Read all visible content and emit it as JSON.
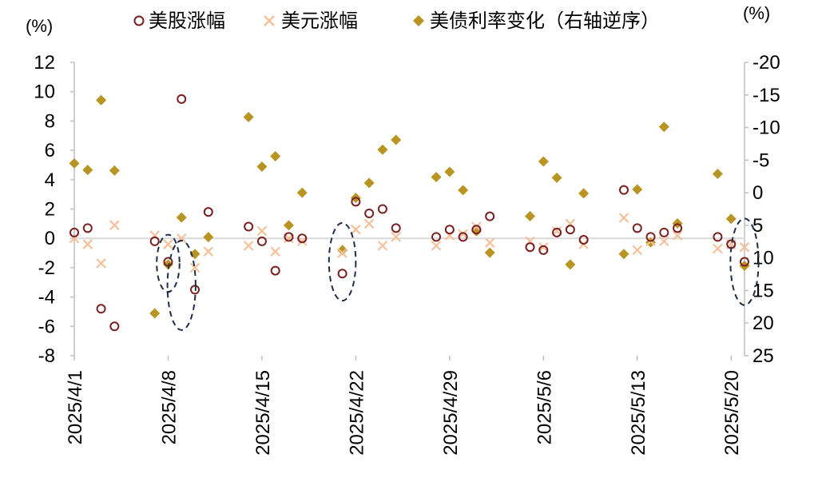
{
  "chart_data": {
    "type": "scatter",
    "left_unit": "(%)",
    "right_unit": "(%)",
    "left_axis": {
      "min": -8,
      "max": 12,
      "step": 2
    },
    "right_axis": {
      "min": -20,
      "max": 25,
      "step": 5,
      "reversed": true
    },
    "x_ticks": [
      "2025/4/1",
      "2025/4/8",
      "2025/4/15",
      "2025/4/22",
      "2025/4/29",
      "2025/5/6",
      "2025/5/13",
      "2025/5/20"
    ],
    "x_tick_day_index": [
      0,
      7,
      14,
      21,
      28,
      35,
      42,
      49
    ],
    "x_range_days": [
      0,
      50
    ],
    "colors": {
      "equity": "#7a1f1f",
      "usd": "#f6c09a",
      "yield": "#b89522",
      "ellipse": "#1f2d4a",
      "zero_line": "#d9d9d9"
    },
    "series": [
      {
        "name": "美股涨幅",
        "axis": "left",
        "marker": "circle",
        "points": [
          {
            "date": "2025/4/1",
            "y": 0.4
          },
          {
            "date": "2025/4/2",
            "y": 0.7
          },
          {
            "date": "2025/4/3",
            "y": -4.8
          },
          {
            "date": "2025/4/4",
            "y": -6.0
          },
          {
            "date": "2025/4/7",
            "y": -0.2
          },
          {
            "date": "2025/4/8",
            "y": -1.6
          },
          {
            "date": "2025/4/9",
            "y": 9.5
          },
          {
            "date": "2025/4/10",
            "y": -3.5
          },
          {
            "date": "2025/4/11",
            "y": 1.8
          },
          {
            "date": "2025/4/14",
            "y": 0.8
          },
          {
            "date": "2025/4/15",
            "y": -0.2
          },
          {
            "date": "2025/4/16",
            "y": -2.2
          },
          {
            "date": "2025/4/17",
            "y": 0.1
          },
          {
            "date": "2025/4/18",
            "y": 0.0
          },
          {
            "date": "2025/4/21",
            "y": -2.4
          },
          {
            "date": "2025/4/22",
            "y": 2.5
          },
          {
            "date": "2025/4/23",
            "y": 1.7
          },
          {
            "date": "2025/4/24",
            "y": 2.0
          },
          {
            "date": "2025/4/25",
            "y": 0.7
          },
          {
            "date": "2025/4/28",
            "y": 0.1
          },
          {
            "date": "2025/4/29",
            "y": 0.6
          },
          {
            "date": "2025/4/30",
            "y": 0.1
          },
          {
            "date": "2025/5/1",
            "y": 0.6
          },
          {
            "date": "2025/5/2",
            "y": 1.5
          },
          {
            "date": "2025/5/5",
            "y": -0.6
          },
          {
            "date": "2025/5/6",
            "y": -0.8
          },
          {
            "date": "2025/5/7",
            "y": 0.4
          },
          {
            "date": "2025/5/8",
            "y": 0.6
          },
          {
            "date": "2025/5/9",
            "y": -0.1
          },
          {
            "date": "2025/5/12",
            "y": 3.3
          },
          {
            "date": "2025/5/13",
            "y": 0.7
          },
          {
            "date": "2025/5/14",
            "y": 0.1
          },
          {
            "date": "2025/5/15",
            "y": 0.4
          },
          {
            "date": "2025/5/16",
            "y": 0.7
          },
          {
            "date": "2025/5/19",
            "y": 0.1
          },
          {
            "date": "2025/5/20",
            "y": -0.4
          },
          {
            "date": "2025/5/21",
            "y": -1.6
          }
        ]
      },
      {
        "name": "美元涨幅",
        "axis": "left",
        "marker": "cross",
        "points": [
          {
            "date": "2025/4/1",
            "y": 0.0
          },
          {
            "date": "2025/4/2",
            "y": -0.4
          },
          {
            "date": "2025/4/3",
            "y": -1.7
          },
          {
            "date": "2025/4/4",
            "y": 0.9
          },
          {
            "date": "2025/4/7",
            "y": 0.2
          },
          {
            "date": "2025/4/8",
            "y": -0.4
          },
          {
            "date": "2025/4/9",
            "y": 0.0
          },
          {
            "date": "2025/4/10",
            "y": -2.0
          },
          {
            "date": "2025/4/11",
            "y": -0.9
          },
          {
            "date": "2025/4/14",
            "y": -0.5
          },
          {
            "date": "2025/4/15",
            "y": 0.5
          },
          {
            "date": "2025/4/16",
            "y": -0.9
          },
          {
            "date": "2025/4/17",
            "y": 0.0
          },
          {
            "date": "2025/4/18",
            "y": -0.2
          },
          {
            "date": "2025/4/21",
            "y": -1.0
          },
          {
            "date": "2025/4/22",
            "y": 0.6
          },
          {
            "date": "2025/4/23",
            "y": 1.0
          },
          {
            "date": "2025/4/24",
            "y": -0.5
          },
          {
            "date": "2025/4/25",
            "y": 0.1
          },
          {
            "date": "2025/4/28",
            "y": -0.5
          },
          {
            "date": "2025/4/29",
            "y": 0.2
          },
          {
            "date": "2025/4/30",
            "y": 0.3
          },
          {
            "date": "2025/5/1",
            "y": 0.8
          },
          {
            "date": "2025/5/2",
            "y": -0.3
          },
          {
            "date": "2025/5/5",
            "y": -0.2
          },
          {
            "date": "2025/5/6",
            "y": -0.6
          },
          {
            "date": "2025/5/7",
            "y": 0.5
          },
          {
            "date": "2025/5/8",
            "y": 1.0
          },
          {
            "date": "2025/5/9",
            "y": -0.4
          },
          {
            "date": "2025/5/12",
            "y": 1.4
          },
          {
            "date": "2025/5/13",
            "y": -0.8
          },
          {
            "date": "2025/5/14",
            "y": -0.2
          },
          {
            "date": "2025/5/15",
            "y": -0.2
          },
          {
            "date": "2025/5/16",
            "y": 0.2
          },
          {
            "date": "2025/5/19",
            "y": -0.7
          },
          {
            "date": "2025/5/20",
            "y": -0.4
          },
          {
            "date": "2025/5/21",
            "y": -0.6
          }
        ]
      },
      {
        "name": "美债利率变化（右轴逆序）",
        "axis": "right",
        "marker": "diamond",
        "points": [
          {
            "date": "2025/4/1",
            "y": -4.5
          },
          {
            "date": "2025/4/2",
            "y": -3.5
          },
          {
            "date": "2025/4/3",
            "y": -14.2
          },
          {
            "date": "2025/4/4",
            "y": -3.4
          },
          {
            "date": "2025/4/7",
            "y": 18.5
          },
          {
            "date": "2025/4/8",
            "y": 11.0
          },
          {
            "date": "2025/4/9",
            "y": 3.8
          },
          {
            "date": "2025/4/10",
            "y": 9.4
          },
          {
            "date": "2025/4/11",
            "y": 6.8
          },
          {
            "date": "2025/4/14",
            "y": -11.6
          },
          {
            "date": "2025/4/15",
            "y": -4.0
          },
          {
            "date": "2025/4/16",
            "y": -5.6
          },
          {
            "date": "2025/4/17",
            "y": 5.0
          },
          {
            "date": "2025/4/18",
            "y": 0.0
          },
          {
            "date": "2025/4/21",
            "y": 8.8
          },
          {
            "date": "2025/4/22",
            "y": 0.8
          },
          {
            "date": "2025/4/23",
            "y": -1.5
          },
          {
            "date": "2025/4/24",
            "y": -6.6
          },
          {
            "date": "2025/4/25",
            "y": -8.1
          },
          {
            "date": "2025/4/28",
            "y": -2.4
          },
          {
            "date": "2025/4/29",
            "y": -3.2
          },
          {
            "date": "2025/4/30",
            "y": -0.4
          },
          {
            "date": "2025/5/1",
            "y": 5.9
          },
          {
            "date": "2025/5/2",
            "y": 9.2
          },
          {
            "date": "2025/5/5",
            "y": 3.6
          },
          {
            "date": "2025/5/6",
            "y": -4.8
          },
          {
            "date": "2025/5/7",
            "y": -2.3
          },
          {
            "date": "2025/5/8",
            "y": 11.0
          },
          {
            "date": "2025/5/9",
            "y": 0.1
          },
          {
            "date": "2025/5/12",
            "y": 9.4
          },
          {
            "date": "2025/5/13",
            "y": -0.5
          },
          {
            "date": "2025/5/14",
            "y": 7.6
          },
          {
            "date": "2025/5/15",
            "y": -10.1
          },
          {
            "date": "2025/5/16",
            "y": 4.7
          },
          {
            "date": "2025/5/19",
            "y": -2.9
          },
          {
            "date": "2025/5/20",
            "y": 4.0
          },
          {
            "date": "2025/5/21",
            "y": 11.2
          }
        ]
      }
    ],
    "ellipses": [
      {
        "date": "2025/4/8",
        "y": -1.7,
        "axis": "left",
        "rx_days": 0.85,
        "ry_units": 1.95
      },
      {
        "date": "2025/4/9",
        "y": -3.2,
        "axis": "left",
        "rx_days": 1.05,
        "ry_units": 3.05
      },
      {
        "date": "2025/4/21",
        "y": -1.6,
        "axis": "left",
        "rx_days": 1.0,
        "ry_units": 2.65
      },
      {
        "date": "2025/5/21",
        "y": -1.6,
        "axis": "left",
        "rx_days": 1.05,
        "ry_units": 2.95
      }
    ]
  }
}
